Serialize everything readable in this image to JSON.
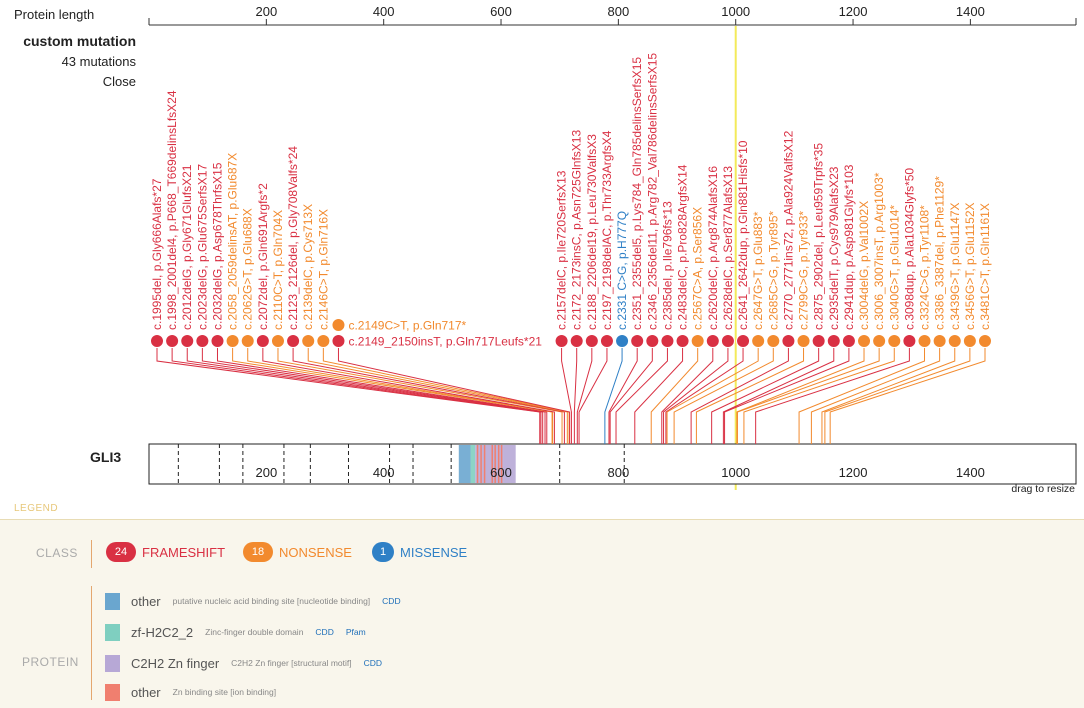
{
  "chart_data": {
    "type": "lollipop",
    "axis": {
      "label": "Protein length",
      "min": 0,
      "max": 1580,
      "ticks": [
        200,
        400,
        600,
        800,
        1000,
        1200,
        1400
      ]
    },
    "highlight_position": 1000,
    "panel": {
      "title": "custom mutation",
      "count_text": "43 mutations",
      "close_label": "Close"
    },
    "gene": {
      "name": "GLI3",
      "drag_hint": "drag to resize",
      "dashed_positions": [
        50,
        120,
        160,
        230,
        275,
        340,
        410,
        450,
        515,
        700,
        810
      ]
    },
    "domains": [
      {
        "start": 528,
        "end": 548,
        "color": "#6aa6cf",
        "kind": "other"
      },
      {
        "start": 548,
        "end": 556,
        "color": "#7fcfc0",
        "kind": "zf-H2C2_2"
      },
      {
        "start": 556,
        "end": 605,
        "color": "#b7a8d6",
        "kind": "C2H2 Zn finger"
      },
      {
        "start": 605,
        "end": 625,
        "color": "#b7a8d6",
        "kind": "C2H2 Zn finger"
      }
    ],
    "zn_sites": [
      560,
      566,
      572,
      585,
      590,
      596,
      601
    ],
    "mutations": [
      {
        "label": "c.1995del, p.Gly666Alafs*27",
        "pos": 666,
        "cls": "frameshift"
      },
      {
        "label": "c.1998_2001del4, p.P668_T669delinsLfsX24",
        "pos": 668,
        "cls": "frameshift"
      },
      {
        "label": "c.2012delG, p.Gly671GlufsX21",
        "pos": 671,
        "cls": "frameshift"
      },
      {
        "label": "c.2023delG, p.Glu675SerfsX17",
        "pos": 675,
        "cls": "frameshift"
      },
      {
        "label": "c.2032delG, p.Asp678ThrfsX15",
        "pos": 678,
        "cls": "frameshift"
      },
      {
        "label": "c.2058_2059delinsAT, p.Glu687X",
        "pos": 687,
        "cls": "nonsense"
      },
      {
        "label": "c.2062G>T, p.Glu688X",
        "pos": 688,
        "cls": "nonsense"
      },
      {
        "label": "c.2072del, p.Gln691Argfs*2",
        "pos": 691,
        "cls": "frameshift"
      },
      {
        "label": "c.2110C>T, p.Gln704X",
        "pos": 704,
        "cls": "nonsense"
      },
      {
        "label": "c.2123_2126del, p.Gly708Valfs*24",
        "pos": 708,
        "cls": "frameshift"
      },
      {
        "label": "c.2139delC, p.Cys713X",
        "pos": 713,
        "cls": "nonsense"
      },
      {
        "label": "c.2146C>T, p.Gln716X",
        "pos": 716,
        "cls": "nonsense"
      },
      {
        "label": "c.2149_2150insT, p.Gln717Leufs*21",
        "pos": 717,
        "cls": "frameshift"
      },
      {
        "label": "c.2149C>T, p.Gln717*",
        "pos": 717,
        "cls": "nonsense"
      },
      {
        "label": "c.2157delC, p.Ile720SerfsX13",
        "pos": 720,
        "cls": "frameshift"
      },
      {
        "label": "c.2172_2173insC, p.Asn725GlnfsX13",
        "pos": 725,
        "cls": "frameshift"
      },
      {
        "label": "c.2188_2206del19, p.Leu730ValfsX3",
        "pos": 730,
        "cls": "frameshift"
      },
      {
        "label": "c.2197_2198delAC, p.Thr733ArgfsX4",
        "pos": 733,
        "cls": "frameshift"
      },
      {
        "label": "c.2331 C>G, p.H777Q",
        "pos": 777,
        "cls": "missense"
      },
      {
        "label": "c.2351_2355del5, p.Lys784_Gln785delinsSerfsX15",
        "pos": 784,
        "cls": "frameshift"
      },
      {
        "label": "c.2346_2356del11, p.Arg782_Val786delinsSerfsX15",
        "pos": 786,
        "cls": "frameshift"
      },
      {
        "label": "c.2385del, p.Ile796fs*13",
        "pos": 796,
        "cls": "frameshift"
      },
      {
        "label": "c.2483delC, p.Pro828ArgfsX14",
        "pos": 828,
        "cls": "frameshift"
      },
      {
        "label": "c.2567C>A, p.Ser856X",
        "pos": 856,
        "cls": "nonsense"
      },
      {
        "label": "c.2620delC, p.Arg874AlafsX16",
        "pos": 874,
        "cls": "frameshift"
      },
      {
        "label": "c.2628delC, p.Ser877AlafsX13",
        "pos": 877,
        "cls": "frameshift"
      },
      {
        "label": "c.2641_2642dup, p.Gln881Hisfs*10",
        "pos": 881,
        "cls": "frameshift"
      },
      {
        "label": "c.2647G>T, p.Glu883*",
        "pos": 883,
        "cls": "nonsense"
      },
      {
        "label": "c.2685C>G, p.Tyr895*",
        "pos": 895,
        "cls": "nonsense"
      },
      {
        "label": "c.2770_2771ins72, p.Ala924ValfsX12",
        "pos": 924,
        "cls": "frameshift"
      },
      {
        "label": "c.2799C>G, p.Tyr933*",
        "pos": 933,
        "cls": "nonsense"
      },
      {
        "label": "c.2875_2902del, p.Leu959Trpfs*35",
        "pos": 959,
        "cls": "frameshift"
      },
      {
        "label": "c.2935delT, p.Cys979AlafsX23",
        "pos": 979,
        "cls": "frameshift"
      },
      {
        "label": "c.2941dup, p.Asp981Glyfs*103",
        "pos": 981,
        "cls": "frameshift"
      },
      {
        "label": "c.3004delG, p.Val1002X",
        "pos": 1002,
        "cls": "nonsense"
      },
      {
        "label": "c.3006_3007insT, p.Arg1003*",
        "pos": 1003,
        "cls": "nonsense"
      },
      {
        "label": "c.3040G>T, p.Glu1014*",
        "pos": 1014,
        "cls": "nonsense"
      },
      {
        "label": "c.3098dup, p.Ala1034Glyfs*50",
        "pos": 1034,
        "cls": "frameshift"
      },
      {
        "label": "c.3324C>G, p.Tyr1108*",
        "pos": 1108,
        "cls": "nonsense"
      },
      {
        "label": "c.3386_3387del, p.Phe1129*",
        "pos": 1129,
        "cls": "nonsense"
      },
      {
        "label": "c.3439G>T, p.Glu1147X",
        "pos": 1147,
        "cls": "nonsense"
      },
      {
        "label": "c.3456G>T, p.Glu1152X",
        "pos": 1152,
        "cls": "nonsense"
      },
      {
        "label": "c.3481C>T, p.Gln1161X",
        "pos": 1161,
        "cls": "nonsense"
      }
    ]
  },
  "colors": {
    "frameshift": "#d93043",
    "nonsense": "#f28a2e",
    "missense": "#2f80c6",
    "highlight": "#f3ea5a"
  },
  "legend": {
    "title": "LEGEND",
    "class_label": "CLASS",
    "protein_label": "PROTEIN",
    "classes": [
      {
        "count": "24",
        "name": "FRAMESHIFT",
        "color": "#d93043"
      },
      {
        "count": "18",
        "name": "NONSENSE",
        "color": "#f28a2e"
      },
      {
        "count": "1",
        "name": "MISSENSE",
        "color": "#2f80c6"
      }
    ],
    "domains": [
      {
        "name": "other",
        "desc": "putative nucleic acid binding site [nucleotide binding]",
        "links": [
          "CDD"
        ],
        "color": "#6aa6cf"
      },
      {
        "name": "zf-H2C2_2",
        "desc": "Zinc-finger double domain",
        "links": [
          "CDD",
          "Pfam"
        ],
        "color": "#7fcfc0"
      },
      {
        "name": "C2H2 Zn finger",
        "desc": "C2H2 Zn finger [structural motif]",
        "links": [
          "CDD"
        ],
        "color": "#b7a8d6"
      },
      {
        "name": "other",
        "desc": "Zn binding site [ion binding]",
        "links": [],
        "color": "#f07f6f"
      }
    ]
  }
}
